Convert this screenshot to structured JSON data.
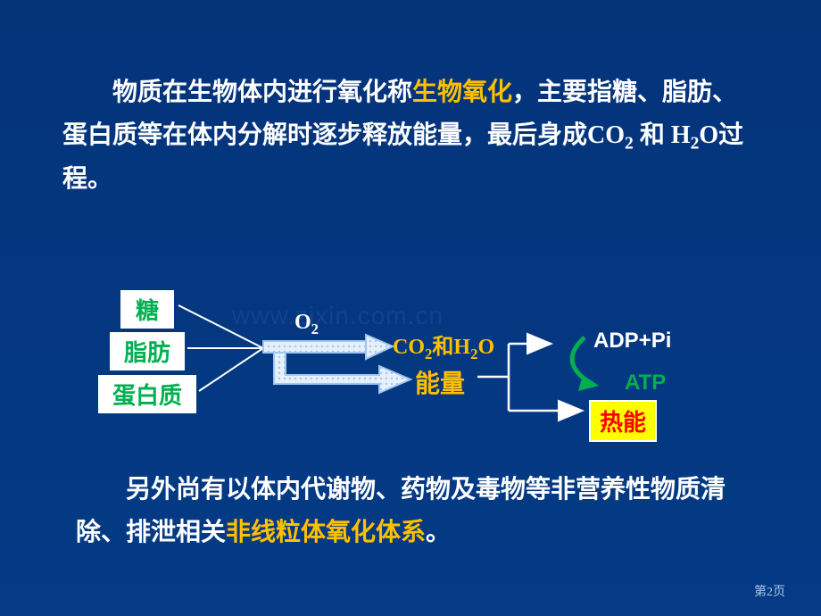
{
  "colors": {
    "background_gradient_top": "#04347a",
    "background_gradient_bottom": "#043a86",
    "body_text": "#ffffff",
    "highlight_orange": "#ffc000",
    "source_green": "#00b050",
    "co2_orange": "#ffc000",
    "energy_orange": "#ffc000",
    "heat_red": "#ff0000",
    "heat_box_bg": "#ffff00",
    "heat_box_border": "#ffffff",
    "atp_green": "#00b050",
    "arrow_green": "#00b050",
    "o2_white": "#ffffff",
    "adp_white": "#ffffff",
    "source_box_bg": "#ffffff",
    "page_num": "#b0c8e8",
    "watermark": "#2d5b9c",
    "line_white": "#ffffff",
    "dotted_outline": "#9fc5f0",
    "dotted_fill": "#e6f0fa"
  },
  "fonts": {
    "para_size": 28,
    "box_size": 26,
    "label_size": 24
  },
  "para1": {
    "indent": "　　",
    "s1": "物质在生物体内进行氧化称",
    "s2": "生物氧化",
    "s3": "，主要指糖、脂肪、蛋白质等在体内分解时逐步释放能量，最后身成CO",
    "s3_sub": "2",
    "s4": "和 H",
    "s4_sub": "2",
    "s5": "O过程。"
  },
  "diagram": {
    "sources": [
      "糖",
      "脂肪",
      "蛋白质"
    ],
    "o2": "O",
    "o2_sub": "2",
    "co2": "CO",
    "co2_sub1": "2",
    "co2_mid": "和H",
    "co2_sub2": "2",
    "co2_end": "O",
    "energy": "能量",
    "adp": "ADP+Pi",
    "atp": "ATP",
    "heat": "热能"
  },
  "para2": {
    "indent": "　　",
    "s1": "另外尚有以体内代谢物、药物及毒物等非营养性物质清除、排泄相关",
    "s2": "非线粒体氧化体系",
    "s3": "。"
  },
  "watermark": "www.zixin.com.cn",
  "page_num": "第2页"
}
